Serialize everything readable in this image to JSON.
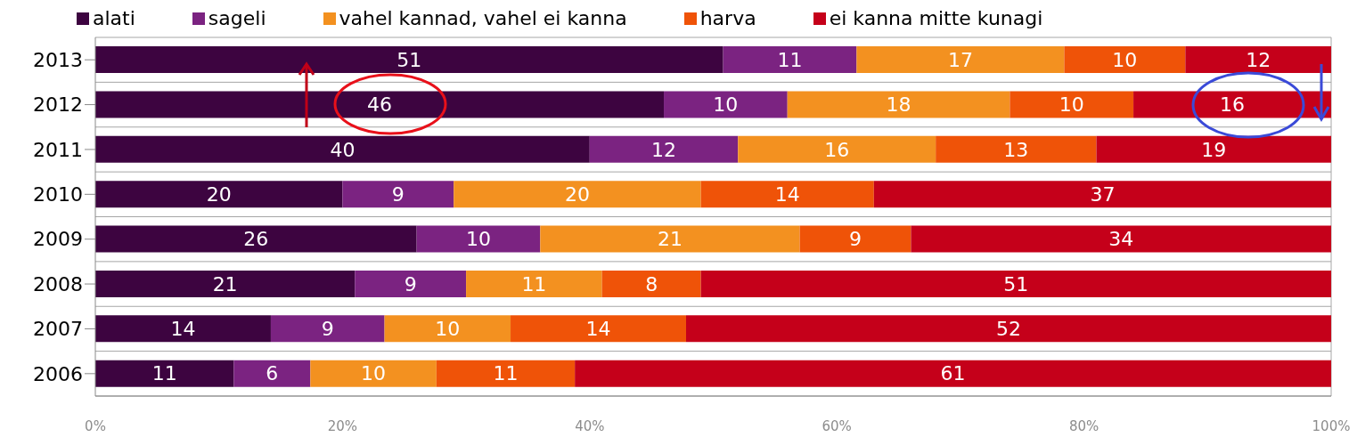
{
  "chart_data": {
    "type": "bar",
    "orientation": "horizontal",
    "stacked": true,
    "categories": [
      "2013",
      "2012",
      "2011",
      "2010",
      "2009",
      "2008",
      "2007",
      "2006"
    ],
    "series": [
      {
        "name": "alati",
        "color": "#3d0440",
        "values": [
          50.8,
          46,
          40,
          20,
          26,
          21,
          14.2,
          11.2
        ],
        "value_labels": [
          "51",
          "46",
          "40",
          "20",
          "26",
          "21",
          "14",
          "11"
        ]
      },
      {
        "name": "sageli",
        "color": "#7b2381",
        "values": [
          10.8,
          10,
          12,
          9,
          10,
          9,
          9.2,
          6.2
        ],
        "value_labels": [
          "11",
          "10",
          "12",
          "9",
          "10",
          "9",
          "9",
          "6"
        ]
      },
      {
        "name": "vahel kannad, vahel ei kanna",
        "color": "#f39120",
        "values": [
          16.8,
          18,
          16,
          20,
          21,
          11,
          10.2,
          10.2
        ],
        "value_labels": [
          "17",
          "18",
          "16",
          "20",
          "21",
          "11",
          "10",
          "10"
        ]
      },
      {
        "name": "harva",
        "color": "#ef5308",
        "values": [
          9.8,
          10,
          13,
          14,
          9,
          8,
          14.2,
          11.2
        ],
        "value_labels": [
          "10",
          "10",
          "13",
          "14",
          "9",
          "8",
          "14",
          "11"
        ]
      },
      {
        "name": "ei kanna mitte kunagi",
        "color": "#c5001a",
        "values": [
          11.8,
          16,
          19,
          37,
          34,
          51,
          52.2,
          61.2
        ],
        "value_labels": [
          "12",
          "16",
          "19",
          "37",
          "34",
          "51",
          "52",
          "61"
        ]
      }
    ],
    "xlim": [
      0,
      100
    ],
    "xticks": [
      {
        "value": 0,
        "label": "0%"
      },
      {
        "value": 20,
        "label": "20%"
      },
      {
        "value": 40,
        "label": "40%"
      },
      {
        "value": 60,
        "label": "60%"
      },
      {
        "value": 80,
        "label": "80%"
      },
      {
        "value": 100,
        "label": "100%"
      }
    ],
    "grid": "y",
    "legend": "top"
  }
}
